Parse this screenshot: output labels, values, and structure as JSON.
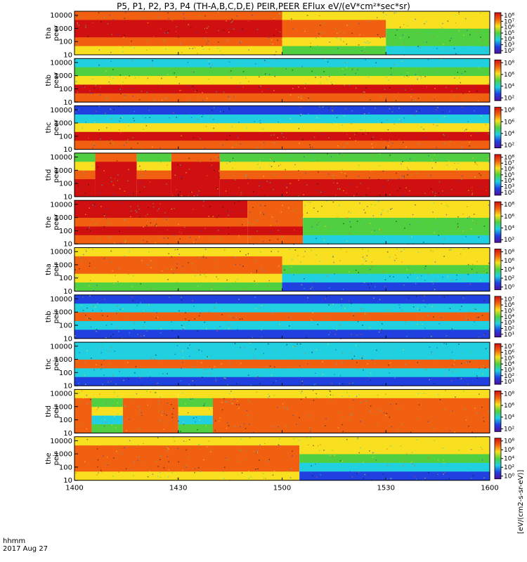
{
  "title": "P5, P1, P2, P3, P4 (TH-A,B,C,D,E) PEIR,PEER EFlux eV/(eV*cm²*sec*sr)",
  "time_axis": {
    "label_line1": "hhmm",
    "label_line2": "2017 Aug 27",
    "ticks": [
      "1400",
      "1430",
      "1500",
      "1530",
      "1600"
    ],
    "range_minutes": [
      0,
      120
    ]
  },
  "colorbar_label": "[eV/(cm2-s-sr-eV)]",
  "colors": {
    "red": "#d01010",
    "orange": "#f06010",
    "yellow": "#f8e020",
    "green": "#50d040",
    "cyan": "#20d0e0",
    "blue": "#2040e0",
    "purple": "#5010a0"
  },
  "chart_data": [
    {
      "type": "heatmap",
      "probe": "tha",
      "species": "peer",
      "ylabel": [
        "tha",
        "peer"
      ],
      "yscale": "log",
      "ylim": [
        10,
        20000
      ],
      "yticks": [
        "10000",
        "1000",
        "100",
        "10"
      ],
      "cbar_ticks": [
        "10⁸",
        "10⁷",
        "10⁶",
        "10⁵",
        "10⁴",
        "10³",
        "10²"
      ],
      "segments": [
        {
          "t": 0,
          "bands": [
            "orange",
            "red",
            "red",
            "orange",
            "yellow"
          ]
        },
        {
          "t": 60,
          "bands": [
            "yellow",
            "orange",
            "orange",
            "yellow",
            "green"
          ]
        },
        {
          "t": 90,
          "bands": [
            "yellow",
            "yellow",
            "green",
            "green",
            "cyan"
          ]
        }
      ]
    },
    {
      "type": "heatmap",
      "probe": "thb",
      "species": "peer",
      "ylabel": [
        "thb",
        "peer"
      ],
      "yscale": "log",
      "ylim": [
        10,
        20000
      ],
      "yticks": [
        "10000",
        "1000",
        "100",
        "10"
      ],
      "cbar_ticks": [
        "10⁸",
        "10⁶",
        "10⁴",
        "10²"
      ],
      "segments": [
        {
          "t": 0,
          "bands": [
            "cyan",
            "green",
            "yellow",
            "red",
            "orange"
          ]
        }
      ]
    },
    {
      "type": "heatmap",
      "probe": "thc",
      "species": "peer",
      "ylabel": [
        "thc",
        "peer"
      ],
      "yscale": "log",
      "ylim": [
        10,
        20000
      ],
      "yticks": [
        "10000",
        "1000",
        "100",
        "10"
      ],
      "cbar_ticks": [
        "10⁸",
        "10⁶",
        "10⁴",
        "10²"
      ],
      "segments": [
        {
          "t": 0,
          "bands": [
            "blue",
            "cyan",
            "yellow",
            "red",
            "orange"
          ]
        }
      ]
    },
    {
      "type": "heatmap",
      "probe": "thd",
      "species": "peer",
      "ylabel": [
        "thd",
        "peer"
      ],
      "yscale": "log",
      "ylim": [
        10,
        20000
      ],
      "yticks": [
        "10000",
        "1000",
        "100",
        "10"
      ],
      "cbar_ticks": [
        "10⁸",
        "10⁷",
        "10⁶",
        "10⁵",
        "10⁴",
        "10³",
        "10²"
      ],
      "segments": [
        {
          "t": 0,
          "bands": [
            "green",
            "yellow",
            "orange",
            "red",
            "red"
          ]
        },
        {
          "t": 6,
          "bands": [
            "orange",
            "red",
            "red",
            "red",
            "red"
          ]
        },
        {
          "t": 18,
          "bands": [
            "green",
            "yellow",
            "orange",
            "red",
            "red"
          ]
        },
        {
          "t": 28,
          "bands": [
            "orange",
            "red",
            "red",
            "red",
            "red"
          ]
        },
        {
          "t": 42,
          "bands": [
            "green",
            "yellow",
            "orange",
            "red",
            "red"
          ]
        }
      ]
    },
    {
      "type": "heatmap",
      "probe": "the",
      "species": "peer",
      "ylabel": [
        "the",
        "peer"
      ],
      "yscale": "log",
      "ylim": [
        10,
        20000
      ],
      "yticks": [
        "10000",
        "1000",
        "100",
        "10"
      ],
      "cbar_ticks": [
        "10⁸",
        "10⁶",
        "10⁴",
        "10²"
      ],
      "segments": [
        {
          "t": 0,
          "bands": [
            "red",
            "red",
            "orange",
            "red",
            "orange"
          ]
        },
        {
          "t": 50,
          "bands": [
            "orange",
            "orange",
            "orange",
            "red",
            "orange"
          ]
        },
        {
          "t": 66,
          "bands": [
            "yellow",
            "yellow",
            "green",
            "green",
            "cyan"
          ]
        }
      ]
    },
    {
      "type": "heatmap",
      "probe": "tha",
      "species": "peir",
      "ylabel": [
        "tha",
        "peir"
      ],
      "yscale": "log",
      "ylim": [
        10,
        20000
      ],
      "yticks": [
        "10000",
        "1000",
        "100",
        "10"
      ],
      "cbar_ticks": [
        "10⁸",
        "10⁶",
        "10⁴",
        "10²",
        "10⁰"
      ],
      "segments": [
        {
          "t": 0,
          "bands": [
            "yellow",
            "orange",
            "orange",
            "yellow",
            "green"
          ]
        },
        {
          "t": 60,
          "bands": [
            "yellow",
            "yellow",
            "green",
            "cyan",
            "blue"
          ]
        }
      ]
    },
    {
      "type": "heatmap",
      "probe": "thb",
      "species": "peir",
      "ylabel": [
        "thb",
        "peir"
      ],
      "yscale": "log",
      "ylim": [
        10,
        20000
      ],
      "yticks": [
        "10000",
        "1000",
        "100",
        "10"
      ],
      "cbar_ticks": [
        "10⁷",
        "10⁶",
        "10⁵",
        "10⁴",
        "10³",
        "10²",
        "10¹"
      ],
      "segments": [
        {
          "t": 0,
          "bands": [
            "blue",
            "cyan",
            "orange",
            "cyan",
            "blue"
          ]
        }
      ]
    },
    {
      "type": "heatmap",
      "probe": "thc",
      "species": "peir",
      "ylabel": [
        "thc",
        "peir"
      ],
      "yscale": "log",
      "ylim": [
        10,
        20000
      ],
      "yticks": [
        "10000",
        "1000",
        "100",
        "10"
      ],
      "cbar_ticks": [
        "10⁷",
        "10⁶",
        "10⁵",
        "10⁴",
        "10³",
        "10²",
        "10¹"
      ],
      "segments": [
        {
          "t": 0,
          "bands": [
            "cyan",
            "cyan",
            "orange",
            "cyan",
            "blue"
          ]
        }
      ]
    },
    {
      "type": "heatmap",
      "probe": "thd",
      "species": "peir",
      "ylabel": [
        "thd",
        "peir"
      ],
      "yscale": "log",
      "ylim": [
        10,
        20000
      ],
      "yticks": [
        "10000",
        "1000",
        "100",
        "10"
      ],
      "cbar_ticks": [
        "10⁸",
        "10⁶",
        "10⁴",
        "10²"
      ],
      "segments": [
        {
          "t": 0,
          "bands": [
            "yellow",
            "orange",
            "orange",
            "orange",
            "orange"
          ]
        },
        {
          "t": 5,
          "bands": [
            "yellow",
            "green",
            "yellow",
            "cyan",
            "green"
          ]
        },
        {
          "t": 14,
          "bands": [
            "yellow",
            "orange",
            "orange",
            "orange",
            "orange"
          ]
        },
        {
          "t": 30,
          "bands": [
            "yellow",
            "green",
            "yellow",
            "cyan",
            "green"
          ]
        },
        {
          "t": 40,
          "bands": [
            "yellow",
            "orange",
            "orange",
            "orange",
            "orange"
          ]
        }
      ]
    },
    {
      "type": "heatmap",
      "probe": "the",
      "species": "peir",
      "ylabel": [
        "the",
        "peir"
      ],
      "yscale": "log",
      "ylim": [
        10,
        20000
      ],
      "yticks": [
        "10000",
        "1000",
        "100",
        "10"
      ],
      "cbar_ticks": [
        "10⁸",
        "10⁶",
        "10⁴",
        "10²",
        "10⁰"
      ],
      "segments": [
        {
          "t": 0,
          "bands": [
            "yellow",
            "orange",
            "orange",
            "orange",
            "yellow"
          ]
        },
        {
          "t": 65,
          "bands": [
            "yellow",
            "yellow",
            "green",
            "cyan",
            "blue"
          ]
        }
      ]
    }
  ]
}
